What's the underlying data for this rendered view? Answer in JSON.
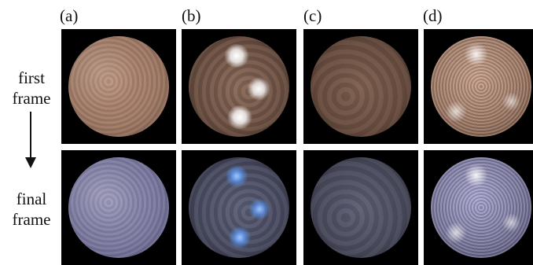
{
  "columns": [
    "(a)",
    "(b)",
    "(c)",
    "(d)"
  ],
  "rows": {
    "first_line1": "first",
    "first_line2": "frame",
    "final_line1": "final",
    "final_line2": "frame"
  },
  "colors": {
    "first_frame_tone": "#a07a66",
    "final_frame_tone": "#7c7aa0",
    "panel_background": "#000000"
  }
}
